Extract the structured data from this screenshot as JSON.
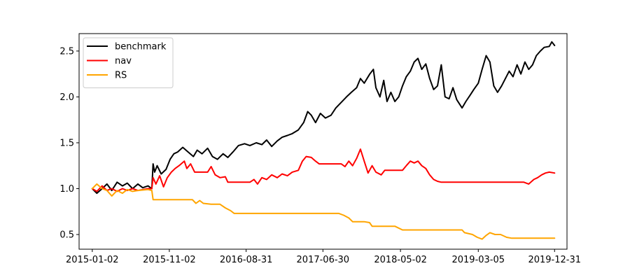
{
  "chart_data": {
    "type": "line",
    "title": "",
    "xlabel": "",
    "ylabel": "",
    "x_ticks": [
      "2015-01-02",
      "2015-11-02",
      "2016-08-31",
      "2017-06-30",
      "2018-05-02",
      "2019-03-05",
      "2019-12-31"
    ],
    "x_range": [
      "2014-11-11",
      "2020-02-18"
    ],
    "y_ticks": [
      "0.5",
      "1.0",
      "1.5",
      "2.0",
      "2.5"
    ],
    "ylim": [
      0.34,
      2.69
    ],
    "grid": false,
    "legend": {
      "placement": "top-left",
      "entries": [
        "benchmark",
        "nav",
        "RS"
      ]
    },
    "series": [
      {
        "name": "benchmark",
        "color": "#000000",
        "points": [
          [
            "2015-01-02",
            1.0
          ],
          [
            "2015-01-20",
            0.95
          ],
          [
            "2015-02-10",
            1.0
          ],
          [
            "2015-03-01",
            1.05
          ],
          [
            "2015-03-20",
            0.98
          ],
          [
            "2015-04-10",
            1.07
          ],
          [
            "2015-05-01",
            1.03
          ],
          [
            "2015-05-20",
            1.06
          ],
          [
            "2015-06-10",
            1.0
          ],
          [
            "2015-07-01",
            1.05
          ],
          [
            "2015-07-20",
            1.01
          ],
          [
            "2015-08-10",
            1.03
          ],
          [
            "2015-08-25",
            1.0
          ],
          [
            "2015-08-30",
            1.27
          ],
          [
            "2015-09-05",
            1.18
          ],
          [
            "2015-09-15",
            1.25
          ],
          [
            "2015-10-01",
            1.16
          ],
          [
            "2015-10-20",
            1.21
          ],
          [
            "2015-11-05",
            1.32
          ],
          [
            "2015-11-20",
            1.38
          ],
          [
            "2015-12-05",
            1.4
          ],
          [
            "2015-12-25",
            1.45
          ],
          [
            "2016-01-15",
            1.4
          ],
          [
            "2016-02-05",
            1.35
          ],
          [
            "2016-02-20",
            1.42
          ],
          [
            "2016-03-10",
            1.38
          ],
          [
            "2016-04-01",
            1.44
          ],
          [
            "2016-04-20",
            1.35
          ],
          [
            "2016-05-10",
            1.32
          ],
          [
            "2016-06-01",
            1.38
          ],
          [
            "2016-06-20",
            1.34
          ],
          [
            "2016-07-10",
            1.4
          ],
          [
            "2016-08-01",
            1.47
          ],
          [
            "2016-08-25",
            1.49
          ],
          [
            "2016-09-15",
            1.47
          ],
          [
            "2016-10-10",
            1.5
          ],
          [
            "2016-11-01",
            1.48
          ],
          [
            "2016-11-20",
            1.53
          ],
          [
            "2016-12-10",
            1.46
          ],
          [
            "2017-01-01",
            1.52
          ],
          [
            "2017-01-20",
            1.56
          ],
          [
            "2017-02-10",
            1.58
          ],
          [
            "2017-03-01",
            1.6
          ],
          [
            "2017-03-25",
            1.64
          ],
          [
            "2017-04-15",
            1.72
          ],
          [
            "2017-05-01",
            1.84
          ],
          [
            "2017-05-15",
            1.8
          ],
          [
            "2017-06-01",
            1.72
          ],
          [
            "2017-06-20",
            1.82
          ],
          [
            "2017-07-10",
            1.77
          ],
          [
            "2017-08-01",
            1.8
          ],
          [
            "2017-08-20",
            1.88
          ],
          [
            "2017-09-10",
            1.94
          ],
          [
            "2017-10-01",
            2.0
          ],
          [
            "2017-10-20",
            2.05
          ],
          [
            "2017-11-10",
            2.1
          ],
          [
            "2017-11-25",
            2.2
          ],
          [
            "2017-12-10",
            2.15
          ],
          [
            "2018-01-01",
            2.25
          ],
          [
            "2018-01-15",
            2.3
          ],
          [
            "2018-01-25",
            2.1
          ],
          [
            "2018-02-10",
            2.0
          ],
          [
            "2018-02-25",
            2.18
          ],
          [
            "2018-03-10",
            1.95
          ],
          [
            "2018-03-25",
            2.05
          ],
          [
            "2018-04-10",
            1.95
          ],
          [
            "2018-04-25",
            2.0
          ],
          [
            "2018-05-10",
            2.12
          ],
          [
            "2018-05-25",
            2.22
          ],
          [
            "2018-06-10",
            2.28
          ],
          [
            "2018-06-25",
            2.38
          ],
          [
            "2018-07-10",
            2.42
          ],
          [
            "2018-07-25",
            2.3
          ],
          [
            "2018-08-10",
            2.36
          ],
          [
            "2018-08-25",
            2.2
          ],
          [
            "2018-09-10",
            2.08
          ],
          [
            "2018-09-25",
            2.12
          ],
          [
            "2018-10-10",
            2.35
          ],
          [
            "2018-10-25",
            2.0
          ],
          [
            "2018-11-10",
            1.98
          ],
          [
            "2018-11-25",
            2.1
          ],
          [
            "2018-12-10",
            1.97
          ],
          [
            "2018-12-31",
            1.88
          ],
          [
            "2019-01-15",
            1.95
          ],
          [
            "2019-02-01",
            2.02
          ],
          [
            "2019-02-15",
            2.08
          ],
          [
            "2019-03-05",
            2.15
          ],
          [
            "2019-03-20",
            2.3
          ],
          [
            "2019-04-05",
            2.45
          ],
          [
            "2019-04-20",
            2.38
          ],
          [
            "2019-05-05",
            2.12
          ],
          [
            "2019-05-20",
            2.05
          ],
          [
            "2019-06-05",
            2.12
          ],
          [
            "2019-06-20",
            2.2
          ],
          [
            "2019-07-05",
            2.28
          ],
          [
            "2019-07-20",
            2.22
          ],
          [
            "2019-08-05",
            2.35
          ],
          [
            "2019-08-20",
            2.25
          ],
          [
            "2019-09-05",
            2.38
          ],
          [
            "2019-09-20",
            2.3
          ],
          [
            "2019-10-05",
            2.35
          ],
          [
            "2019-10-20",
            2.45
          ],
          [
            "2019-11-05",
            2.5
          ],
          [
            "2019-11-20",
            2.54
          ],
          [
            "2019-12-10",
            2.55
          ],
          [
            "2019-12-20",
            2.6
          ],
          [
            "2019-12-31",
            2.56
          ]
        ]
      },
      {
        "name": "nav",
        "color": "#ff0000",
        "points": [
          [
            "2015-01-02",
            1.0
          ],
          [
            "2015-01-20",
            0.97
          ],
          [
            "2015-02-10",
            1.03
          ],
          [
            "2015-03-01",
            0.98
          ],
          [
            "2015-03-20",
            1.0
          ],
          [
            "2015-04-10",
            0.97
          ],
          [
            "2015-05-01",
            1.0
          ],
          [
            "2015-05-20",
            0.98
          ],
          [
            "2015-06-10",
            1.0
          ],
          [
            "2015-07-01",
            0.98
          ],
          [
            "2015-08-10",
            1.0
          ],
          [
            "2015-08-25",
            1.0
          ],
          [
            "2015-08-30",
            1.12
          ],
          [
            "2015-09-10",
            1.05
          ],
          [
            "2015-09-25",
            1.14
          ],
          [
            "2015-10-10",
            1.02
          ],
          [
            "2015-10-25",
            1.12
          ],
          [
            "2015-11-10",
            1.18
          ],
          [
            "2015-11-25",
            1.22
          ],
          [
            "2015-12-10",
            1.25
          ],
          [
            "2015-12-31",
            1.3
          ],
          [
            "2016-01-10",
            1.22
          ],
          [
            "2016-01-25",
            1.27
          ],
          [
            "2016-02-10",
            1.18
          ],
          [
            "2016-03-10",
            1.18
          ],
          [
            "2016-04-01",
            1.18
          ],
          [
            "2016-04-15",
            1.24
          ],
          [
            "2016-05-01",
            1.15
          ],
          [
            "2016-05-20",
            1.12
          ],
          [
            "2016-06-10",
            1.13
          ],
          [
            "2016-06-20",
            1.07
          ],
          [
            "2016-08-01",
            1.07
          ],
          [
            "2016-09-15",
            1.07
          ],
          [
            "2016-10-01",
            1.1
          ],
          [
            "2016-10-15",
            1.05
          ],
          [
            "2016-11-01",
            1.12
          ],
          [
            "2016-11-20",
            1.1
          ],
          [
            "2016-12-10",
            1.15
          ],
          [
            "2017-01-01",
            1.12
          ],
          [
            "2017-01-20",
            1.16
          ],
          [
            "2017-02-10",
            1.14
          ],
          [
            "2017-03-01",
            1.18
          ],
          [
            "2017-03-25",
            1.2
          ],
          [
            "2017-04-10",
            1.3
          ],
          [
            "2017-04-25",
            1.35
          ],
          [
            "2017-05-15",
            1.34
          ],
          [
            "2017-06-01",
            1.3
          ],
          [
            "2017-06-15",
            1.27
          ],
          [
            "2017-08-01",
            1.27
          ],
          [
            "2017-09-10",
            1.27
          ],
          [
            "2017-09-25",
            1.24
          ],
          [
            "2017-10-10",
            1.3
          ],
          [
            "2017-10-25",
            1.25
          ],
          [
            "2017-11-10",
            1.33
          ],
          [
            "2017-11-25",
            1.43
          ],
          [
            "2017-12-10",
            1.3
          ],
          [
            "2017-12-25",
            1.17
          ],
          [
            "2018-01-10",
            1.25
          ],
          [
            "2018-01-25",
            1.18
          ],
          [
            "2018-02-15",
            1.15
          ],
          [
            "2018-03-01",
            1.2
          ],
          [
            "2018-03-20",
            1.2
          ],
          [
            "2018-04-10",
            1.2
          ],
          [
            "2018-04-25",
            1.2
          ],
          [
            "2018-05-10",
            1.2
          ],
          [
            "2018-05-25",
            1.25
          ],
          [
            "2018-06-10",
            1.3
          ],
          [
            "2018-06-25",
            1.28
          ],
          [
            "2018-07-10",
            1.3
          ],
          [
            "2018-07-25",
            1.25
          ],
          [
            "2018-08-10",
            1.22
          ],
          [
            "2018-08-25",
            1.15
          ],
          [
            "2018-09-10",
            1.1
          ],
          [
            "2018-09-25",
            1.08
          ],
          [
            "2018-10-10",
            1.07
          ],
          [
            "2019-03-05",
            1.07
          ],
          [
            "2019-08-01",
            1.07
          ],
          [
            "2019-09-01",
            1.07
          ],
          [
            "2019-09-20",
            1.05
          ],
          [
            "2019-10-10",
            1.1
          ],
          [
            "2019-10-25",
            1.12
          ],
          [
            "2019-11-10",
            1.15
          ],
          [
            "2019-11-25",
            1.17
          ],
          [
            "2019-12-10",
            1.18
          ],
          [
            "2019-12-31",
            1.17
          ]
        ]
      },
      {
        "name": "RS",
        "color": "#ffa500",
        "points": [
          [
            "2015-01-02",
            1.0
          ],
          [
            "2015-01-20",
            1.05
          ],
          [
            "2015-02-10",
            1.0
          ],
          [
            "2015-03-01",
            0.98
          ],
          [
            "2015-03-20",
            0.92
          ],
          [
            "2015-04-10",
            0.98
          ],
          [
            "2015-05-01",
            0.95
          ],
          [
            "2015-05-20",
            0.99
          ],
          [
            "2015-06-10",
            0.97
          ],
          [
            "2015-07-01",
            0.98
          ],
          [
            "2015-08-10",
            0.99
          ],
          [
            "2015-08-25",
            0.98
          ],
          [
            "2015-08-30",
            0.88
          ],
          [
            "2015-09-30",
            0.88
          ],
          [
            "2015-12-31",
            0.88
          ],
          [
            "2016-01-10",
            0.88
          ],
          [
            "2016-02-01",
            0.88
          ],
          [
            "2016-02-15",
            0.84
          ],
          [
            "2016-03-01",
            0.87
          ],
          [
            "2016-03-15",
            0.84
          ],
          [
            "2016-04-15",
            0.83
          ],
          [
            "2016-05-20",
            0.83
          ],
          [
            "2016-06-10",
            0.79
          ],
          [
            "2016-07-01",
            0.76
          ],
          [
            "2016-07-15",
            0.73
          ],
          [
            "2016-08-10",
            0.73
          ],
          [
            "2016-12-31",
            0.73
          ],
          [
            "2017-06-30",
            0.73
          ],
          [
            "2017-09-01",
            0.73
          ],
          [
            "2017-09-20",
            0.71
          ],
          [
            "2017-10-10",
            0.68
          ],
          [
            "2017-10-25",
            0.64
          ],
          [
            "2017-12-10",
            0.64
          ],
          [
            "2017-12-31",
            0.63
          ],
          [
            "2018-01-10",
            0.59
          ],
          [
            "2018-04-10",
            0.59
          ],
          [
            "2018-05-10",
            0.55
          ],
          [
            "2018-12-31",
            0.55
          ],
          [
            "2019-01-10",
            0.52
          ],
          [
            "2019-02-10",
            0.5
          ],
          [
            "2019-03-01",
            0.47
          ],
          [
            "2019-03-20",
            0.45
          ],
          [
            "2019-04-05",
            0.49
          ],
          [
            "2019-04-20",
            0.52
          ],
          [
            "2019-05-10",
            0.5
          ],
          [
            "2019-06-01",
            0.5
          ],
          [
            "2019-06-25",
            0.47
          ],
          [
            "2019-07-15",
            0.46
          ],
          [
            "2019-08-01",
            0.46
          ],
          [
            "2019-12-31",
            0.46
          ]
        ]
      }
    ]
  }
}
